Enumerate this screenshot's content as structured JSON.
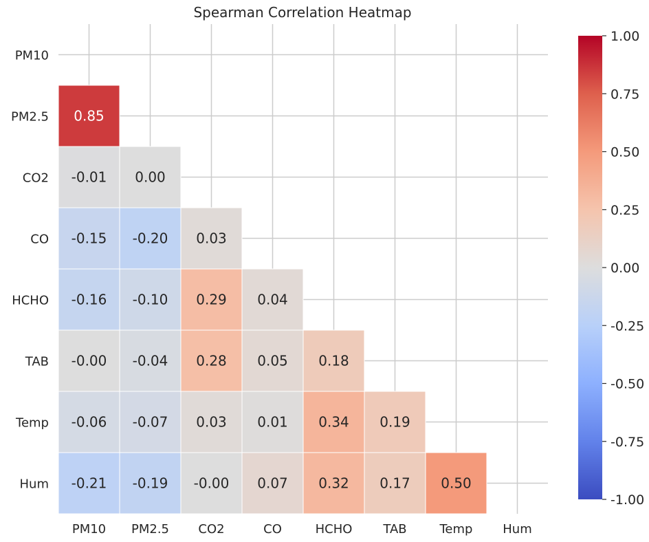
{
  "chart_data": {
    "type": "heatmap",
    "title": "Spearman Correlation Heatmap",
    "xlabel": "",
    "ylabel": "",
    "variables": [
      "PM10",
      "PM2.5",
      "CO2",
      "CO",
      "HCHO",
      "TAB",
      "Temp",
      "Hum"
    ],
    "mask": "upper-triangle-including-diagonal",
    "matrix": [
      [
        null,
        null,
        null,
        null,
        null,
        null,
        null,
        null
      ],
      [
        0.85,
        null,
        null,
        null,
        null,
        null,
        null,
        null
      ],
      [
        -0.01,
        0.0,
        null,
        null,
        null,
        null,
        null,
        null
      ],
      [
        -0.15,
        -0.2,
        0.03,
        null,
        null,
        null,
        null,
        null
      ],
      [
        -0.16,
        -0.1,
        0.29,
        0.04,
        null,
        null,
        null,
        null
      ],
      [
        -0.0,
        -0.04,
        0.28,
        0.05,
        0.18,
        null,
        null,
        null
      ],
      [
        -0.06,
        -0.07,
        0.03,
        0.01,
        0.34,
        0.19,
        null,
        null
      ],
      [
        -0.21,
        -0.19,
        -0.0,
        0.07,
        0.32,
        0.17,
        0.5,
        null
      ]
    ],
    "colorbar": {
      "colormap": "coolwarm",
      "range": [
        -1,
        1
      ],
      "ticks": [
        1.0,
        0.75,
        0.5,
        0.25,
        0.0,
        -0.25,
        -0.5,
        -0.75,
        -1.0
      ],
      "tick_labels": [
        "1.00",
        "0.75",
        "0.50",
        "0.25",
        "0.00",
        "-0.25",
        "-0.50",
        "-0.75",
        "-1.00"
      ]
    },
    "grid": true,
    "colors": {
      "grid": "#cccccc",
      "cell_border": "#ffffff",
      "text": "#262626"
    }
  }
}
